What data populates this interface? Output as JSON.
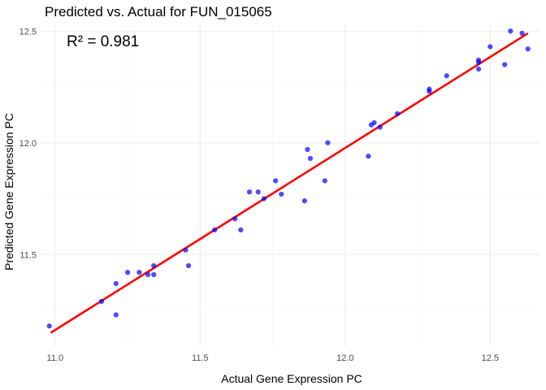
{
  "chart_data": {
    "type": "scatter",
    "title": "Predicted vs. Actual for FUN_015065",
    "xlabel": "Actual Gene Expression PC",
    "ylabel": "Predicted Gene Expression PC",
    "annotation": "R² = 0.981",
    "xlim": [
      10.95,
      12.67
    ],
    "ylim": [
      11.09,
      12.53
    ],
    "x_ticks": [
      11.0,
      11.5,
      12.0,
      12.5
    ],
    "x_tick_labels": [
      "11.0",
      "11.5",
      "12.0",
      "12.5"
    ],
    "y_ticks": [
      11.5,
      12.0,
      12.5
    ],
    "y_tick_labels": [
      "11.5",
      "12.0",
      "12.5"
    ],
    "grid": true,
    "point_color": "#0000ff",
    "line_color": "#ff0000",
    "fit_line": {
      "x": [
        10.985,
        12.63
      ],
      "y": [
        11.15,
        12.49
      ]
    },
    "points": [
      {
        "x": 10.98,
        "y": 11.18
      },
      {
        "x": 11.16,
        "y": 11.29
      },
      {
        "x": 11.21,
        "y": 11.23
      },
      {
        "x": 11.21,
        "y": 11.37
      },
      {
        "x": 11.25,
        "y": 11.42
      },
      {
        "x": 11.29,
        "y": 11.42
      },
      {
        "x": 11.32,
        "y": 11.41
      },
      {
        "x": 11.34,
        "y": 11.41
      },
      {
        "x": 11.34,
        "y": 11.45
      },
      {
        "x": 11.45,
        "y": 11.52
      },
      {
        "x": 11.46,
        "y": 11.45
      },
      {
        "x": 11.55,
        "y": 11.61
      },
      {
        "x": 11.62,
        "y": 11.66
      },
      {
        "x": 11.64,
        "y": 11.61
      },
      {
        "x": 11.67,
        "y": 11.78
      },
      {
        "x": 11.7,
        "y": 11.78
      },
      {
        "x": 11.72,
        "y": 11.75
      },
      {
        "x": 11.76,
        "y": 11.83
      },
      {
        "x": 11.78,
        "y": 11.77
      },
      {
        "x": 11.86,
        "y": 11.74
      },
      {
        "x": 11.87,
        "y": 11.97
      },
      {
        "x": 11.88,
        "y": 11.93
      },
      {
        "x": 11.93,
        "y": 11.83
      },
      {
        "x": 11.94,
        "y": 12.0
      },
      {
        "x": 12.08,
        "y": 11.94
      },
      {
        "x": 12.09,
        "y": 12.08
      },
      {
        "x": 12.1,
        "y": 12.09
      },
      {
        "x": 12.12,
        "y": 12.07
      },
      {
        "x": 12.18,
        "y": 12.13
      },
      {
        "x": 12.29,
        "y": 12.23
      },
      {
        "x": 12.29,
        "y": 12.24
      },
      {
        "x": 12.35,
        "y": 12.3
      },
      {
        "x": 12.46,
        "y": 12.33
      },
      {
        "x": 12.46,
        "y": 12.37
      },
      {
        "x": 12.46,
        "y": 12.36
      },
      {
        "x": 12.5,
        "y": 12.43
      },
      {
        "x": 12.55,
        "y": 12.35
      },
      {
        "x": 12.57,
        "y": 12.5
      },
      {
        "x": 12.61,
        "y": 12.49
      },
      {
        "x": 12.63,
        "y": 12.42
      }
    ]
  }
}
